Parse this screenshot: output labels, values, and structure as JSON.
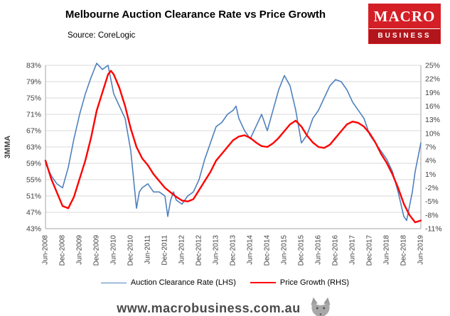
{
  "header": {
    "title": "Melbourne Auction Clearance Rate vs Price Growth",
    "source": "Source: CoreLogic",
    "logo": {
      "line1": "MACRO",
      "line2": "BUSINESS",
      "color": "#d41f26"
    }
  },
  "legend": [
    {
      "label": "Auction Clearance Rate (LHS)",
      "color": "#4f81bd"
    },
    {
      "label": "Price Growth (RHS)",
      "color": "#ff0000"
    }
  ],
  "footer": {
    "url": "www.macrobusiness.com.au",
    "logo_icon": "wolf-icon"
  },
  "chart_data": {
    "type": "line",
    "title": "Melbourne Auction Clearance Rate vs Price Growth",
    "x_unit": "months since Jun-2008",
    "x_tick_labels": [
      "Jun-2008",
      "Dec-2008",
      "Jun-2009",
      "Dec-2009",
      "Jun-2010",
      "Dec-2010",
      "Jun-2011",
      "Dec-2011",
      "Jun-2012",
      "Dec-2012",
      "Jun-2013",
      "Dec-2013",
      "Jun-2014",
      "Dec-2014",
      "Jun-2015",
      "Dec-2015",
      "Jun-2016",
      "Dec-2016",
      "Jun-2017",
      "Dec-2017",
      "Jun-2018",
      "Dec-2018",
      "Jun-2019"
    ],
    "x_tick_step_months": 6,
    "left_axis": {
      "label": "3MMA",
      "min": 43,
      "max": 83,
      "step": 4,
      "format": "percent"
    },
    "right_axis": {
      "label": "",
      "min": -11,
      "max": 25,
      "step": 3,
      "format": "percent"
    },
    "grid": {
      "on": true,
      "color": "#d9d9d9",
      "axis_color": "#a6a6a6"
    },
    "legend_position": "bottom",
    "series": [
      {
        "name": "Auction Clearance Rate (LHS)",
        "axis": "left",
        "color": "#4f81bd",
        "stroke_width": 1.6,
        "points": [
          [
            0,
            59
          ],
          [
            2,
            56
          ],
          [
            4,
            54
          ],
          [
            6,
            53
          ],
          [
            8,
            58
          ],
          [
            10,
            65
          ],
          [
            12,
            71
          ],
          [
            14,
            76
          ],
          [
            16,
            80
          ],
          [
            18,
            83.5
          ],
          [
            20,
            82
          ],
          [
            22,
            83
          ],
          [
            24,
            76
          ],
          [
            26,
            73
          ],
          [
            28,
            70
          ],
          [
            30,
            62
          ],
          [
            31,
            55
          ],
          [
            32,
            48
          ],
          [
            33,
            52
          ],
          [
            34,
            53
          ],
          [
            36,
            54
          ],
          [
            38,
            52
          ],
          [
            40,
            52
          ],
          [
            42,
            51
          ],
          [
            43,
            46
          ],
          [
            44,
            50
          ],
          [
            45,
            52
          ],
          [
            46,
            50
          ],
          [
            48,
            49
          ],
          [
            50,
            51
          ],
          [
            52,
            52
          ],
          [
            54,
            55
          ],
          [
            56,
            60
          ],
          [
            58,
            64
          ],
          [
            60,
            68
          ],
          [
            62,
            69
          ],
          [
            64,
            71
          ],
          [
            66,
            72
          ],
          [
            67,
            73
          ],
          [
            68,
            70
          ],
          [
            70,
            67
          ],
          [
            72,
            65
          ],
          [
            74,
            68
          ],
          [
            76,
            71
          ],
          [
            78,
            67
          ],
          [
            80,
            72
          ],
          [
            82,
            77
          ],
          [
            84,
            80.5
          ],
          [
            86,
            78
          ],
          [
            88,
            72
          ],
          [
            90,
            64
          ],
          [
            92,
            66
          ],
          [
            94,
            70
          ],
          [
            96,
            72
          ],
          [
            98,
            75
          ],
          [
            100,
            78
          ],
          [
            102,
            79.5
          ],
          [
            104,
            79
          ],
          [
            106,
            77
          ],
          [
            108,
            74
          ],
          [
            110,
            72
          ],
          [
            112,
            70
          ],
          [
            114,
            66
          ],
          [
            116,
            64
          ],
          [
            118,
            62
          ],
          [
            120,
            60
          ],
          [
            122,
            57
          ],
          [
            124,
            52
          ],
          [
            126,
            46
          ],
          [
            127,
            45
          ],
          [
            129,
            52
          ],
          [
            130,
            57
          ],
          [
            132,
            64
          ]
        ]
      },
      {
        "name": "Price Growth (RHS)",
        "axis": "right",
        "color": "#ff0000",
        "stroke_width": 2.4,
        "points": [
          [
            0,
            4
          ],
          [
            2,
            0
          ],
          [
            4,
            -3
          ],
          [
            6,
            -6
          ],
          [
            8,
            -6.5
          ],
          [
            10,
            -4
          ],
          [
            12,
            0
          ],
          [
            14,
            4
          ],
          [
            16,
            9
          ],
          [
            18,
            15
          ],
          [
            20,
            19
          ],
          [
            22,
            23
          ],
          [
            23,
            23.8
          ],
          [
            24,
            23
          ],
          [
            26,
            20
          ],
          [
            28,
            16
          ],
          [
            30,
            11
          ],
          [
            32,
            7
          ],
          [
            34,
            4.5
          ],
          [
            36,
            3
          ],
          [
            38,
            1
          ],
          [
            40,
            -0.5
          ],
          [
            42,
            -2
          ],
          [
            44,
            -3
          ],
          [
            46,
            -4
          ],
          [
            48,
            -4.8
          ],
          [
            50,
            -5
          ],
          [
            52,
            -4.5
          ],
          [
            54,
            -2.5
          ],
          [
            56,
            -0.5
          ],
          [
            58,
            1.5
          ],
          [
            60,
            4
          ],
          [
            62,
            5.5
          ],
          [
            64,
            7
          ],
          [
            66,
            8.5
          ],
          [
            68,
            9.3
          ],
          [
            70,
            9.6
          ],
          [
            72,
            9
          ],
          [
            74,
            8
          ],
          [
            76,
            7.2
          ],
          [
            78,
            7
          ],
          [
            80,
            7.8
          ],
          [
            82,
            9
          ],
          [
            84,
            10.5
          ],
          [
            86,
            12
          ],
          [
            88,
            12.8
          ],
          [
            90,
            11.5
          ],
          [
            92,
            9.5
          ],
          [
            94,
            8
          ],
          [
            96,
            7
          ],
          [
            98,
            6.8
          ],
          [
            100,
            7.5
          ],
          [
            102,
            9
          ],
          [
            104,
            10.5
          ],
          [
            106,
            12
          ],
          [
            108,
            12.6
          ],
          [
            110,
            12.3
          ],
          [
            112,
            11.5
          ],
          [
            114,
            10
          ],
          [
            116,
            8
          ],
          [
            118,
            5.5
          ],
          [
            120,
            3.5
          ],
          [
            122,
            1
          ],
          [
            124,
            -2
          ],
          [
            126,
            -5.5
          ],
          [
            128,
            -8
          ],
          [
            130,
            -9.6
          ],
          [
            132,
            -9.2
          ]
        ]
      }
    ]
  }
}
